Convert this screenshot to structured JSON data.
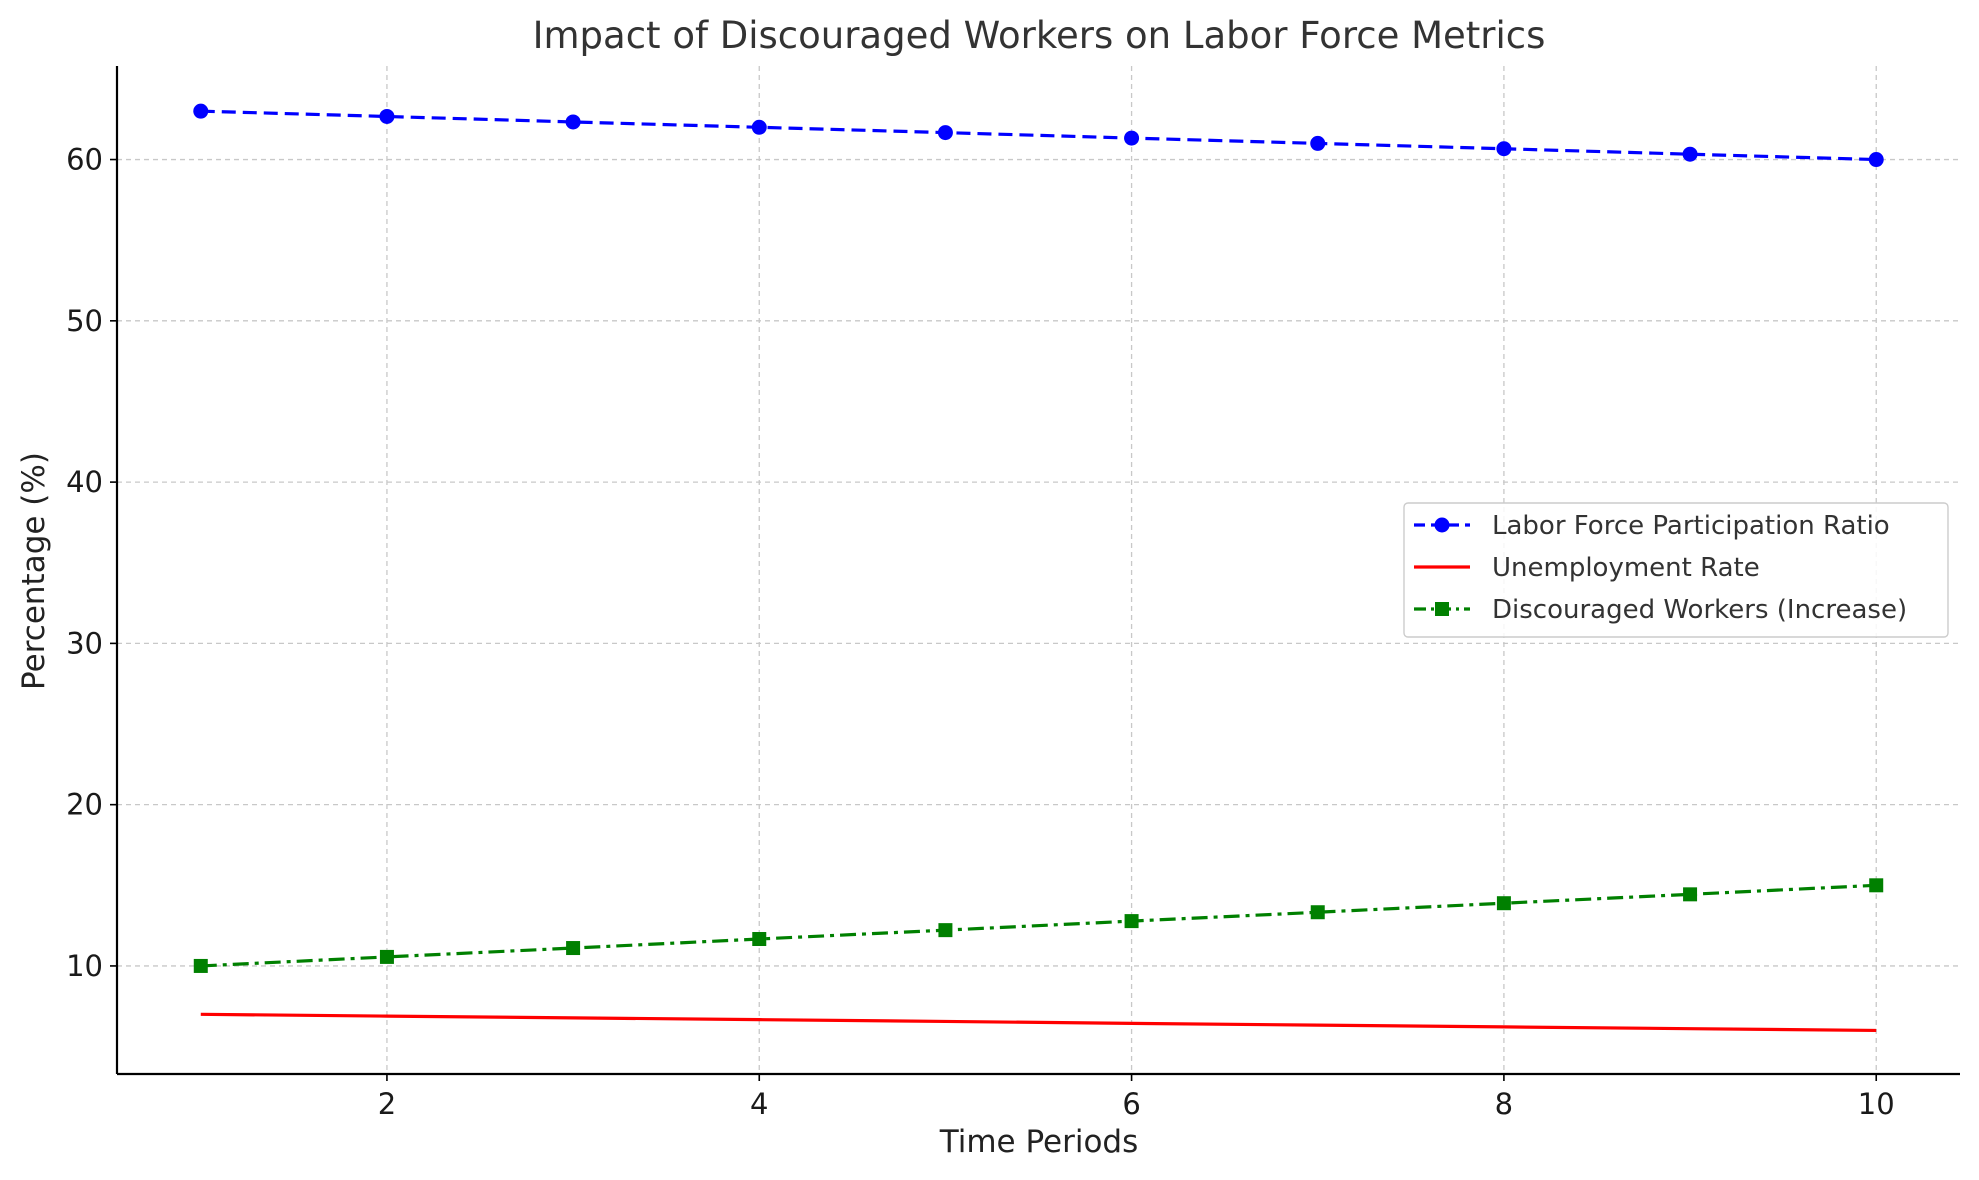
{
  "chart_data": {
    "type": "line",
    "title": "Impact of Discouraged Workers on Labor Force Metrics",
    "xlabel": "Time Periods",
    "ylabel": "Percentage (%)",
    "x": [
      1,
      2,
      3,
      4,
      5,
      6,
      7,
      8,
      9,
      10
    ],
    "xlim": [
      0.55,
      10.45
    ],
    "ylim": [
      3.3,
      65.8
    ],
    "xticks": [
      2,
      4,
      6,
      8,
      10
    ],
    "yticks": [
      10,
      20,
      30,
      40,
      50,
      60
    ],
    "grid": true,
    "legend_position": "center-right",
    "series": [
      {
        "name": "Labor Force Participation Ratio",
        "values": [
          63.0,
          62.67,
          62.33,
          62.0,
          61.67,
          61.33,
          61.0,
          60.67,
          60.33,
          60.0
        ],
        "color": "#0000ff",
        "line_style": "dashed",
        "marker": "circle"
      },
      {
        "name": "Unemployment Rate",
        "values": [
          7.0,
          6.89,
          6.78,
          6.67,
          6.56,
          6.44,
          6.33,
          6.22,
          6.11,
          6.0
        ],
        "color": "#ff0000",
        "line_style": "solid",
        "marker": "none"
      },
      {
        "name": "Discouraged Workers (Increase)",
        "values": [
          10.0,
          10.56,
          11.11,
          11.67,
          12.22,
          12.78,
          13.33,
          13.89,
          14.44,
          15.0
        ],
        "color": "#008000",
        "line_style": "dash-dot",
        "marker": "square"
      }
    ]
  }
}
